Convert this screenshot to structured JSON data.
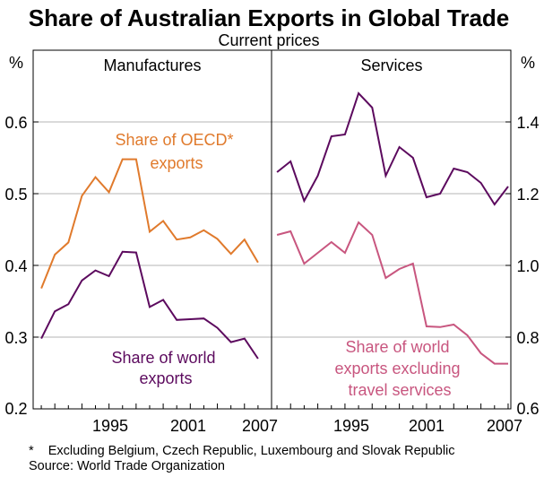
{
  "chart_data": {
    "type": "line",
    "title": "Share of Australian Exports in Global Trade",
    "subtitle": "Current prices",
    "left_unit": "%",
    "right_unit": "%",
    "left_axis": {
      "ylim": [
        0.2,
        0.7
      ],
      "ticks": [
        "0.2",
        "0.3",
        "0.4",
        "0.5",
        "0.6"
      ]
    },
    "right_axis": {
      "ylim": [
        0.6,
        1.6
      ],
      "ticks": [
        "0.6",
        "0.8",
        "1.0",
        "1.2",
        "1.4"
      ]
    },
    "x_ticks": [
      "1995",
      "2001",
      "2007"
    ],
    "panels": [
      {
        "title": "Manufactures",
        "axis": "left",
        "xlim": [
          1989.4,
          2007.0
        ],
        "series": [
          {
            "name": "Share of OECD* exports",
            "label_lines": [
              "Share of OECD*",
              "exports"
            ],
            "color": "#e07a2c",
            "x": [
              1990,
              1991,
              1992,
              1993,
              1994,
              1995,
              1996,
              1997,
              1998,
              1999,
              2000,
              2001,
              2002,
              2003,
              2004,
              2005,
              2006
            ],
            "values": [
              0.368,
              0.415,
              0.432,
              0.497,
              0.523,
              0.502,
              0.548,
              0.548,
              0.447,
              0.462,
              0.436,
              0.439,
              0.449,
              0.437,
              0.416,
              0.436,
              0.404
            ]
          },
          {
            "name": "Share of world exports",
            "label_lines": [
              "Share of world",
              "exports"
            ],
            "color": "#5c0a5e",
            "x": [
              1990,
              1991,
              1992,
              1993,
              1994,
              1995,
              1996,
              1997,
              1998,
              1999,
              2000,
              2001,
              2002,
              2003,
              2004,
              2005,
              2006
            ],
            "values": [
              0.298,
              0.336,
              0.346,
              0.379,
              0.393,
              0.385,
              0.419,
              0.418,
              0.342,
              0.352,
              0.324,
              0.325,
              0.326,
              0.313,
              0.293,
              0.298,
              0.27
            ]
          }
        ]
      },
      {
        "title": "Services",
        "axis": "right",
        "xlim": [
          1989.6,
          2007.2
        ],
        "series": [
          {
            "name": "Share of world exports",
            "label_lines": [],
            "color": "#5c0a5e",
            "x": [
              1990,
              1991,
              1992,
              1993,
              1994,
              1995,
              1996,
              1997,
              1998,
              1999,
              2000,
              2001,
              2002,
              2003,
              2004,
              2005,
              2006,
              2007
            ],
            "values": [
              1.26,
              1.29,
              1.18,
              1.25,
              1.36,
              1.365,
              1.48,
              1.44,
              1.25,
              1.33,
              1.3,
              1.19,
              1.2,
              1.27,
              1.26,
              1.23,
              1.17,
              1.22
            ]
          },
          {
            "name": "Share of world exports excluding travel services",
            "label_lines": [
              "Share of world",
              "exports excluding",
              "travel services"
            ],
            "color": "#c8567f",
            "x": [
              1990,
              1991,
              1992,
              1993,
              1994,
              1995,
              1996,
              1997,
              1998,
              1999,
              2000,
              2001,
              2002,
              2003,
              2004,
              2005,
              2006,
              2007
            ],
            "values": [
              1.085,
              1.095,
              1.005,
              1.035,
              1.065,
              1.035,
              1.12,
              1.085,
              0.965,
              0.99,
              1.005,
              0.83,
              0.828,
              0.835,
              0.805,
              0.755,
              0.726,
              0.726
            ]
          }
        ]
      }
    ],
    "footnotes": [
      "*    Excluding Belgium, Czech Republic, Luxembourg and Slovak Republic",
      "Source: World Trade Organization"
    ]
  }
}
